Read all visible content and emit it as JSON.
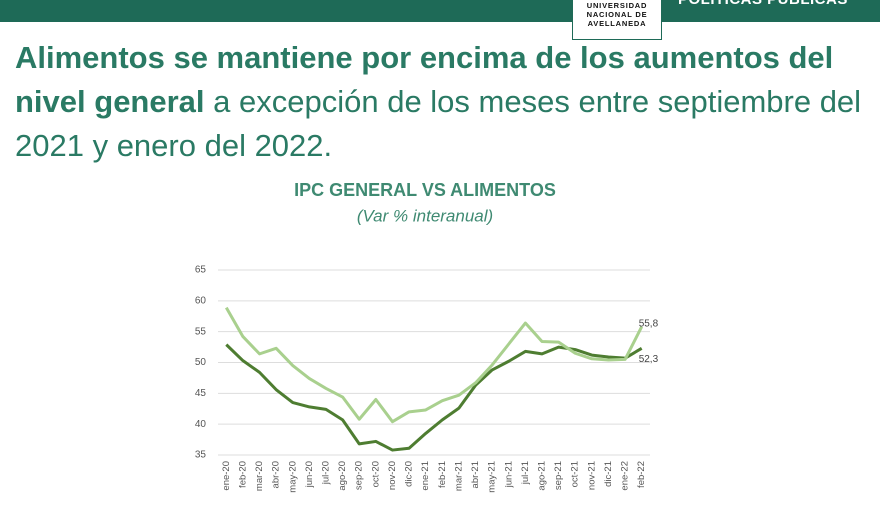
{
  "header": {
    "logo": [
      "UNIVERSIDAD",
      "NACIONAL DE",
      "AVELLANEDA"
    ],
    "section": "POLÍTICAS PÚBLICAS",
    "heading_bold": "Alimentos se mantiene por encima de los aumentos del nivel general",
    "heading_regular": " a excepción de los meses entre septiembre del 2021 y enero del 2022."
  },
  "chart_data": {
    "type": "line",
    "title": "IPC GENERAL VS ALIMENTOS",
    "subtitle": "(Var % interanual)",
    "categories": [
      "ene-20",
      "feb-20",
      "mar-20",
      "abr-20",
      "may-20",
      "jun-20",
      "jul-20",
      "ago-20",
      "sep-20",
      "oct-20",
      "nov-20",
      "dic-20",
      "ene-21",
      "feb-21",
      "mar-21",
      "abr-21",
      "may-21",
      "jun-21",
      "jul-21",
      "ago-21",
      "sep-21",
      "oct-21",
      "nov-21",
      "dic-21",
      "ene-22",
      "feb-22"
    ],
    "series": [
      {
        "color": "#4e7d31",
        "values": [
          52.9,
          50.3,
          48.4,
          45.6,
          43.5,
          42.8,
          42.4,
          40.7,
          36.8,
          37.2,
          35.8,
          36.1,
          38.5,
          40.7,
          42.6,
          46.3,
          48.8,
          50.2,
          51.8,
          51.4,
          52.5,
          52.1,
          51.2,
          50.9,
          50.7,
          52.3
        ],
        "value_labels": [
          null,
          null,
          null,
          null,
          null,
          null,
          null,
          null,
          null,
          null,
          null,
          null,
          null,
          null,
          null,
          null,
          null,
          null,
          null,
          null,
          null,
          null,
          null,
          null,
          null,
          "52,3"
        ]
      },
      {
        "color": "#a9d08e",
        "values": [
          58.9,
          54.2,
          51.4,
          52.3,
          49.5,
          47.4,
          45.8,
          44.4,
          40.8,
          44.0,
          40.4,
          42.0,
          42.3,
          43.8,
          44.7,
          46.7,
          49.6,
          53.0,
          56.4,
          53.4,
          53.3,
          51.5,
          50.6,
          50.4,
          50.5,
          55.8
        ],
        "value_labels": [
          null,
          null,
          null,
          null,
          null,
          null,
          null,
          null,
          null,
          null,
          null,
          null,
          null,
          null,
          null,
          null,
          null,
          null,
          null,
          null,
          null,
          null,
          null,
          null,
          null,
          "55,8"
        ]
      }
    ],
    "ylim": [
      35,
      65
    ],
    "yticks": [
      35,
      40,
      45,
      50,
      55,
      60,
      65
    ],
    "grid": true
  }
}
